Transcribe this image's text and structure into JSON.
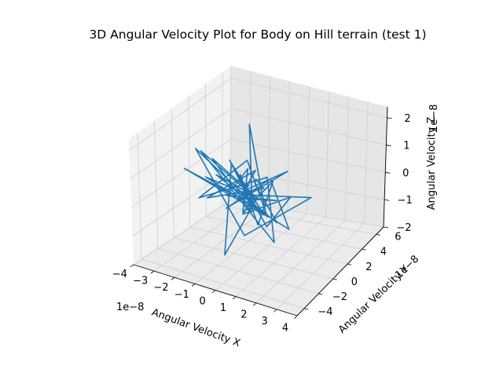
{
  "chart_data": {
    "type": "line",
    "title": "3D Angular Velocity Plot for Body on Hill terrain (test 1)",
    "xlabel": "Angular Velocity X",
    "ylabel": "Angular Velocity Y",
    "zlabel": "Angular Velocity Z",
    "x_offset": "1e−8",
    "y_offset": "1e−8",
    "z_offset": "1e−8",
    "x_ticks": [
      "−4",
      "−3",
      "−2",
      "−1",
      "0",
      "1",
      "2",
      "3",
      "4"
    ],
    "y_ticks": [
      "−4",
      "−2",
      "0",
      "2",
      "4",
      "6"
    ],
    "z_ticks": [
      "−2",
      "−1",
      "0",
      "1",
      "2"
    ],
    "xlim": [
      -4,
      4
    ],
    "ylim": [
      -5,
      7
    ],
    "zlim": [
      -2,
      2.4
    ],
    "grid": true,
    "line_color": "#1f77b4",
    "series": [
      {
        "values_note": "",
        "x": [
          0.1,
          1.8,
          -0.6,
          1.1,
          2.2,
          -1.3,
          0.4,
          -2.1,
          1.9,
          0.7,
          -2.0,
          0.1,
          1.6,
          -2.6,
          0.2,
          3.2,
          -0.4,
          0.9,
          -1.8,
          1.2,
          -0.1,
          0.9,
          1.5,
          -1.2,
          0.3,
          0.5,
          -0.6,
          1.3,
          -2.4,
          0.8,
          0.2,
          0.6,
          -0.9,
          1.6,
          2.3,
          -0.2,
          1.2,
          0.4,
          -1.5,
          0.6,
          -0.3,
          1.1,
          1.4,
          0.5,
          0.1,
          -0.8,
          1.9,
          -0.5,
          0.4,
          0.0
        ],
        "y": [
          0.0,
          1.2,
          -0.5,
          0.8,
          0.3,
          -1.4,
          0.6,
          0.2,
          -0.9,
          1.5,
          -0.3,
          0.4,
          -1.0,
          0.9,
          -0.2,
          0.5,
          1.1,
          -0.7,
          0.3,
          -0.4,
          2.2,
          -0.8,
          0.6,
          -0.2,
          1.3,
          -3.8,
          0.2,
          -0.6,
          -1.2,
          1.0,
          0.4,
          -0.3,
          0.8,
          -1.1,
          0.2,
          0.7,
          -2.0,
          0.5,
          0.1,
          -0.4,
          0.6,
          -0.9,
          0.3,
          -1.3,
          0.5,
          0.2,
          -0.6,
          0.9,
          -0.2,
          0.1
        ],
        "z": [
          0.0,
          0.7,
          -0.6,
          0.4,
          -0.9,
          0.5,
          -0.3,
          0.8,
          -1.1,
          0.2,
          -0.6,
          0.9,
          -0.3,
          0.6,
          -1.4,
          0.3,
          -0.5,
          1.0,
          -0.7,
          0.4,
          -0.2,
          0.6,
          -0.9,
          0.3,
          -0.5,
          -1.1,
          0.7,
          -0.4,
          0.5,
          -0.8,
          2.1,
          -0.3,
          0.6,
          -0.6,
          0.2,
          -1.0,
          0.4,
          -0.2,
          0.7,
          -0.5,
          0.3,
          -0.7,
          0.5,
          -0.3,
          0.6,
          -0.4,
          0.2,
          -0.6,
          0.3,
          0.0
        ]
      }
    ]
  }
}
